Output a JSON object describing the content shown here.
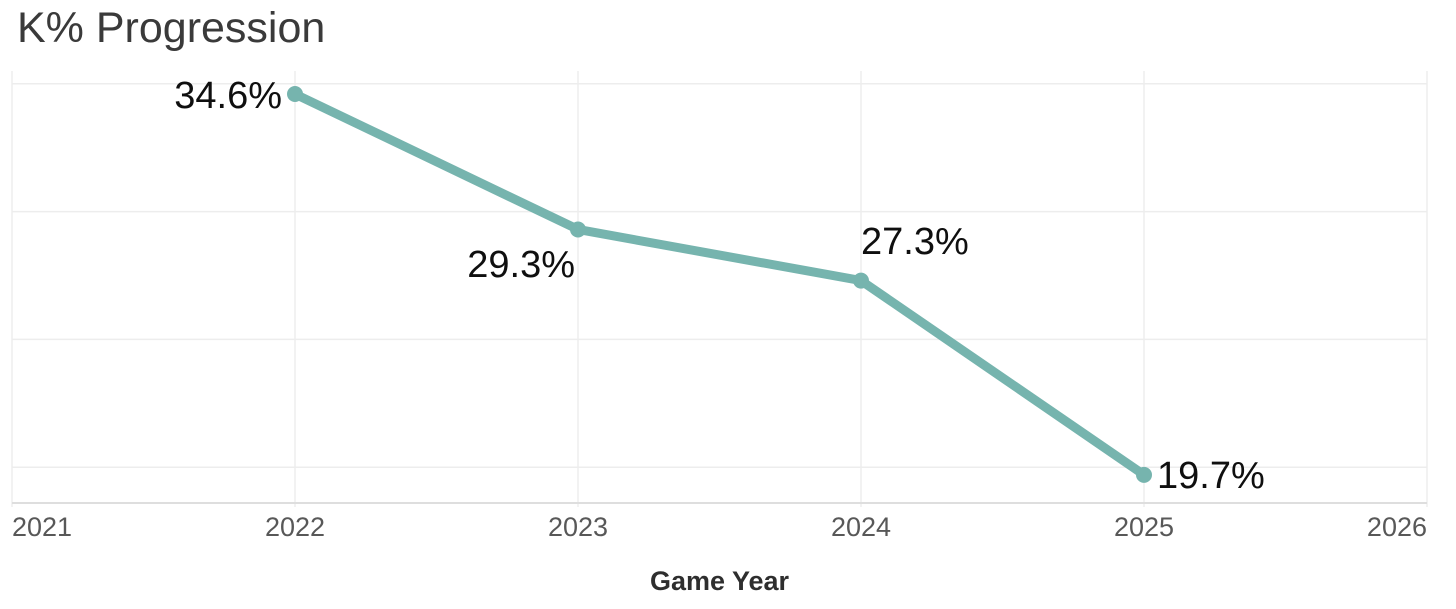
{
  "chart_data": {
    "type": "line",
    "title": "K% Progression",
    "xlabel": "Game Year",
    "ylabel": "",
    "x": [
      2022,
      2023,
      2024,
      2025
    ],
    "series": [
      {
        "name": "K%",
        "values": [
          34.6,
          29.3,
          27.3,
          19.7
        ],
        "point_labels": [
          "34.6%",
          "29.3%",
          "27.3%",
          "19.7%"
        ],
        "color": "#76b4ae"
      }
    ],
    "x_ticks": [
      "2021",
      "2022",
      "2023",
      "2024",
      "2025",
      "2026"
    ],
    "x_range": [
      2021,
      2026
    ],
    "y_range": [
      18.6,
      35.5
    ],
    "y_gridlines": [
      20,
      25,
      30,
      35
    ],
    "y_tick_labels_shown": false,
    "grid": true,
    "legend_position": "none",
    "point_label_positions": [
      "left",
      "below-left",
      "above-right",
      "right"
    ],
    "colors": {
      "line": "#76b4ae",
      "grid": "#ededed",
      "axis_line": "#dedede",
      "tick_label": "#585858",
      "title": "#3a3a3a",
      "data_label": "#0f0f0f",
      "axis_title": "#2e2e2e",
      "background": "#ffffff"
    }
  }
}
